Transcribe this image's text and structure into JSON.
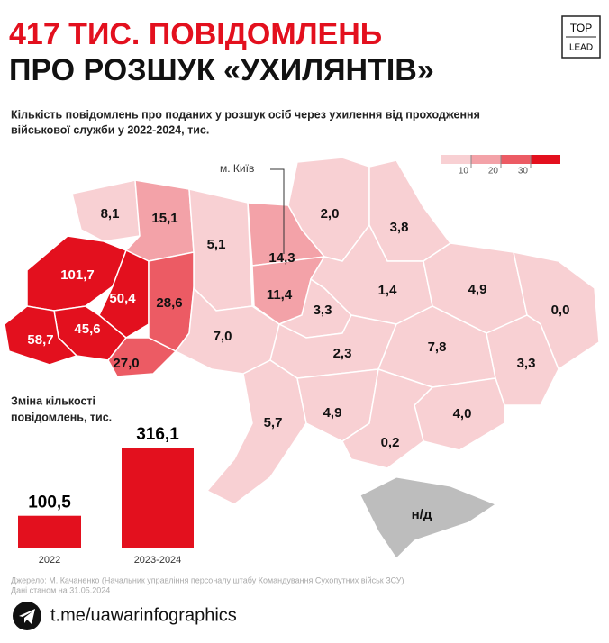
{
  "header": {
    "title_line1": "417 ТИС. ПОВІДОМЛЕНЬ",
    "title_line2": "ПРО РОЗШУК «УХИЛЯНТІВ»",
    "subtitle_line1": "Кількість повідомлень про поданих у розшук осіб через ухилення від проходження",
    "subtitle_line2": "військової служби у 2022-2024, тис.",
    "logo_top": "TOP",
    "logo_bottom": "LEAD"
  },
  "map": {
    "legend": {
      "ticks": [
        10,
        20,
        30
      ],
      "colors": [
        "#f8d0d3",
        "#f3a2a8",
        "#ec5b64",
        "#e3101e"
      ]
    },
    "kyiv_label": "м. Київ",
    "no_data_label": "н/д",
    "no_data_color": "#bdbdbd",
    "regions": [
      {
        "value": 8.1,
        "label": "8,1"
      },
      {
        "value": 15.1,
        "label": "15,1"
      },
      {
        "value": 5.1,
        "label": "5,1"
      },
      {
        "value": 14.3,
        "label": "14,3"
      },
      {
        "value": 11.4,
        "label": "11,4"
      },
      {
        "value": 2.0,
        "label": "2,0"
      },
      {
        "value": 3.8,
        "label": "3,8"
      },
      {
        "value": 101.7,
        "label": "101,7"
      },
      {
        "value": 50.4,
        "label": "50,4"
      },
      {
        "value": 28.6,
        "label": "28,6"
      },
      {
        "value": 45.6,
        "label": "45,6"
      },
      {
        "value": 58.7,
        "label": "58,7"
      },
      {
        "value": 27.0,
        "label": "27,0"
      },
      {
        "value": 7.0,
        "label": "7,0"
      },
      {
        "value": 3.3,
        "label": "3,3"
      },
      {
        "value": 1.4,
        "label": "1,4"
      },
      {
        "value": 4.9,
        "label": "4,9"
      },
      {
        "value": 0.0,
        "label": "0,0"
      },
      {
        "value": 2.3,
        "label": "2,3"
      },
      {
        "value": 7.8,
        "label": "7,8"
      },
      {
        "value": 3.3,
        "label": "3,3"
      },
      {
        "value": 5.7,
        "label": "5,7"
      },
      {
        "value": 4.9,
        "label": "4,9"
      },
      {
        "value": 4.0,
        "label": "4,0"
      },
      {
        "value": 0.2,
        "label": "0,2"
      }
    ]
  },
  "chart_data": {
    "type": "bar",
    "title_line1": "Зміна кількості",
    "title_line2": "повідомлень, тис.",
    "categories": [
      "2022",
      "2023-2024"
    ],
    "values": [
      100.5,
      316.1
    ],
    "value_labels": [
      "100,5",
      "316,1"
    ],
    "color": "#e3101e"
  },
  "footer": {
    "source_line1": "Джерело: М. Качаненко (Начальник управління персоналу штабу Командування Сухопутних військ ЗСУ)",
    "source_line2": "Дані станом на 31.05.2024",
    "link": "t.me/uawarinfographics"
  }
}
